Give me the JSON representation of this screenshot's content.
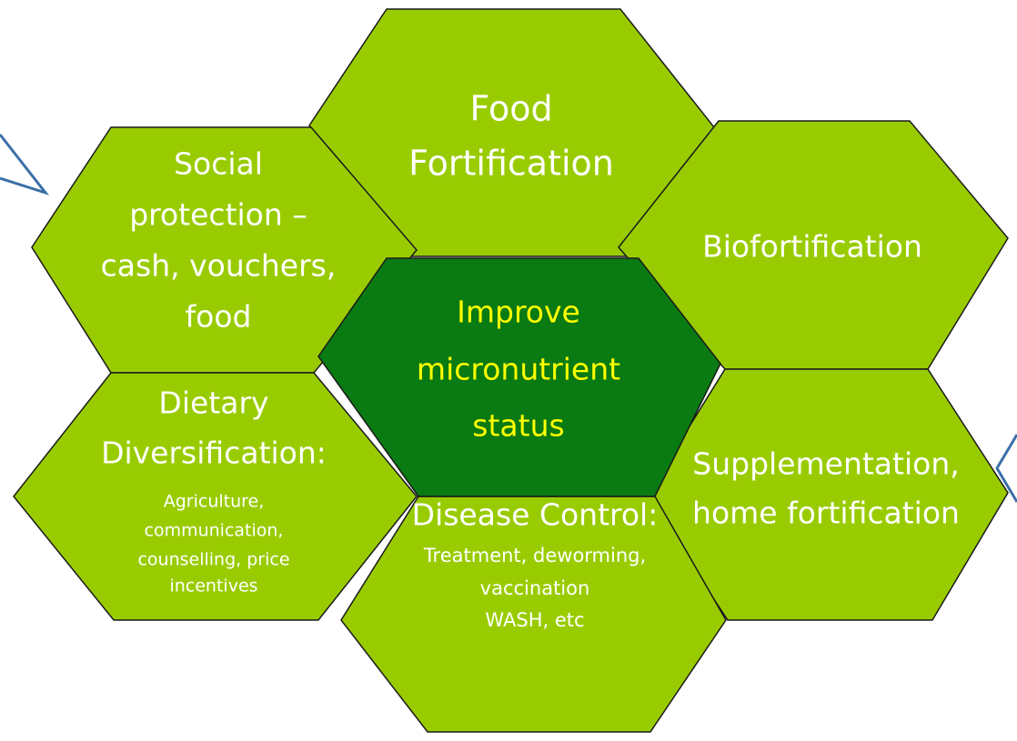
{
  "hexagons": [
    {
      "title": [
        "Food",
        "Fortification"
      ]
    },
    {
      "title": [
        "Social",
        "protection –",
        "cash, vouchers,",
        "food"
      ]
    },
    {
      "title": [
        "Biofortification"
      ]
    },
    {
      "title": [
        "Dietary",
        "Diversification:"
      ],
      "details": [
        "Agriculture,",
        "communication,",
        "counselling, price",
        "incentives"
      ]
    },
    {
      "title": [
        "Supplementation,",
        "home fortification"
      ]
    },
    {
      "title": [
        "Disease Control:"
      ],
      "details": [
        "Treatment, deworming,",
        "vaccination",
        "WASH, etc"
      ]
    },
    {
      "title": [
        "Improve",
        "micronutrient",
        "status"
      ]
    }
  ]
}
